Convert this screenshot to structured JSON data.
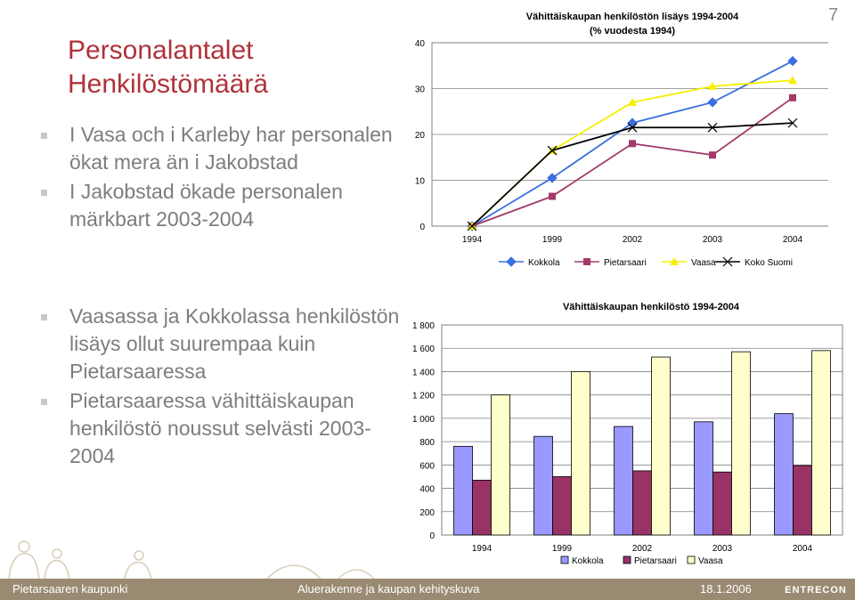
{
  "slide": {
    "number": "7",
    "title_lines": [
      "Personalantalet",
      "Henkilöstömäärä"
    ],
    "bullets_top": [
      "I Vasa och i Karleby har personalen ökat mera än i Jakobstad",
      "I Jakobstad ökade personalen märkbart 2003-2004"
    ],
    "bullets_bottom": [
      "Vaasassa ja Kokkolassa henkilöstön lisäys ollut suurempaa kuin Pietarsaaressa",
      "Pietarsaaressa vähittäiskaupan henkilöstö noussut selvästi 2003-2004"
    ]
  },
  "footer": {
    "left": "Pietarsaaren kaupunki",
    "center": "Aluerakenne ja kaupan kehityskuva",
    "date": "18.1.2006",
    "logo": "ENTRECON"
  },
  "chart_data": [
    {
      "type": "line",
      "title": "Vähittäiskaupan henkilöstön lisäys 1994-2004",
      "subtitle": "(% vuodesta 1994)",
      "categories": [
        "1994",
        "1999",
        "2002",
        "2003",
        "2004"
      ],
      "ylim": [
        0,
        40
      ],
      "yticks": [
        "0",
        "10",
        "20",
        "30",
        "40"
      ],
      "grid": true,
      "legend": "bottom",
      "series": [
        {
          "name": "Kokkola",
          "values": [
            0,
            10.5,
            22.5,
            27,
            36
          ],
          "color": "#3a6fe0",
          "marker": "diamond"
        },
        {
          "name": "Pietarsaari",
          "values": [
            0,
            6.5,
            18,
            15.5,
            28
          ],
          "color": "#a33a6a",
          "marker": "square"
        },
        {
          "name": "Vaasa",
          "values": [
            0,
            16.5,
            27,
            30.5,
            31.8
          ],
          "color": "#f5f000",
          "marker": "triangle"
        },
        {
          "name": "Koko Suomi",
          "values": [
            0,
            16.5,
            21.5,
            21.5,
            22.5
          ],
          "color": "#000000",
          "marker": "x"
        }
      ]
    },
    {
      "type": "bar",
      "title": "Vähittäiskaupan henkilöstö 1994-2004",
      "categories": [
        "1994",
        "1999",
        "2002",
        "2003",
        "2004"
      ],
      "ylim": [
        0,
        1800
      ],
      "yticks": [
        "0",
        "200",
        "400",
        "600",
        "800",
        "1 000",
        "1 200",
        "1 400",
        "1 600",
        "1 800"
      ],
      "grid": true,
      "legend": "bottom",
      "series": [
        {
          "name": "Kokkola",
          "values": [
            760,
            845,
            930,
            970,
            1040
          ],
          "color": "#9999ff"
        },
        {
          "name": "Pietarsaari",
          "values": [
            470,
            500,
            550,
            540,
            595
          ],
          "color": "#993366"
        },
        {
          "name": "Vaasa",
          "values": [
            1200,
            1400,
            1525,
            1570,
            1580
          ],
          "color": "#ffffcc"
        }
      ]
    }
  ]
}
